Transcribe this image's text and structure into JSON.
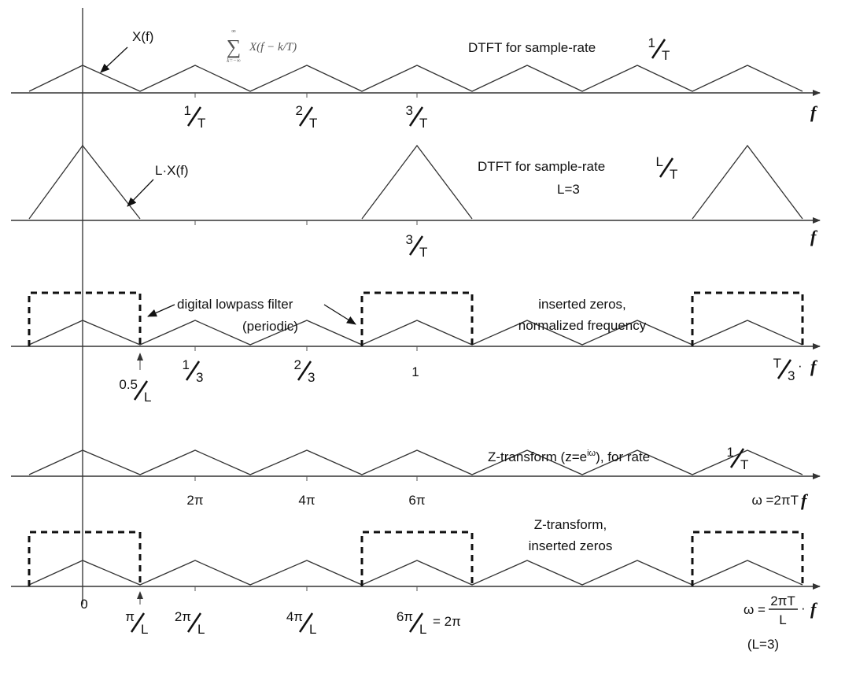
{
  "colors": {
    "line": "#333333",
    "filter": "#111111",
    "axis": "#333333"
  },
  "vertical_axis_label": "0",
  "rows": [
    {
      "name": "dtft-rate-1-over-T",
      "signal": "periodic-triangles",
      "title": "DTFT for sample-rate",
      "title_frac": {
        "num": "1",
        "den": "T"
      },
      "annotations": [
        {
          "text": "X(f)"
        }
      ],
      "formula": {
        "body": "X(f − k/T)",
        "sum": "∑",
        "lower": "k=−∞",
        "upper": "∞"
      },
      "ticks": [
        {
          "num": "1",
          "den": "T"
        },
        {
          "num": "2",
          "den": "T"
        },
        {
          "num": "3",
          "den": "T"
        }
      ],
      "axis_var": "f"
    },
    {
      "name": "dtft-rate-L-over-T",
      "signal": "tall-triangles",
      "title": "DTFT for sample-rate",
      "title_frac": {
        "num": "L",
        "den": "T"
      },
      "subtitle": "L=3",
      "annotations": [
        {
          "text": "L·X(f)"
        }
      ],
      "ticks": [
        {
          "num": "3",
          "den": "T"
        }
      ],
      "axis_var": "f"
    },
    {
      "name": "inserted-zeros-normalized",
      "signal": "periodic-triangles-with-filter",
      "title_lines": [
        "inserted zeros,",
        "normalized frequency"
      ],
      "filter_label": [
        "digital lowpass filter",
        "(periodic)"
      ],
      "ticks": [
        {
          "num": "0.5",
          "den": "L"
        },
        {
          "num": "1",
          "den": "3"
        },
        {
          "num": "2",
          "den": "3"
        },
        {
          "text": "1"
        }
      ],
      "axis_label": {
        "num": "T",
        "den": "3",
        "suffix": "·",
        "var": "f"
      }
    },
    {
      "name": "z-transform-rate-1-over-T",
      "signal": "periodic-triangles",
      "title": "Z-transform (z=e",
      "title_sup": "iω",
      "title_rest": "), for rate",
      "title_frac": {
        "num": "1",
        "den": "T"
      },
      "ticks": [
        {
          "text": "2π"
        },
        {
          "text": "4π"
        },
        {
          "text": "6π"
        }
      ],
      "axis_label": {
        "text": "ω =2πT",
        "var": "f"
      }
    },
    {
      "name": "z-transform-inserted-zeros",
      "signal": "periodic-triangles-with-filter",
      "title_lines": [
        "Z-transform,",
        "inserted zeros"
      ],
      "ticks": [
        {
          "num": "π",
          "den": "L"
        },
        {
          "num": "2π",
          "den": "L"
        },
        {
          "num": "4π",
          "den": "L"
        },
        {
          "num": "6π",
          "den": "L",
          "suffix": "= 2π"
        }
      ],
      "axis_label": {
        "pre": "ω =",
        "num": "2πT",
        "den": "L",
        "suffix": "·",
        "var": "f"
      },
      "note": "(L=3)"
    }
  ]
}
